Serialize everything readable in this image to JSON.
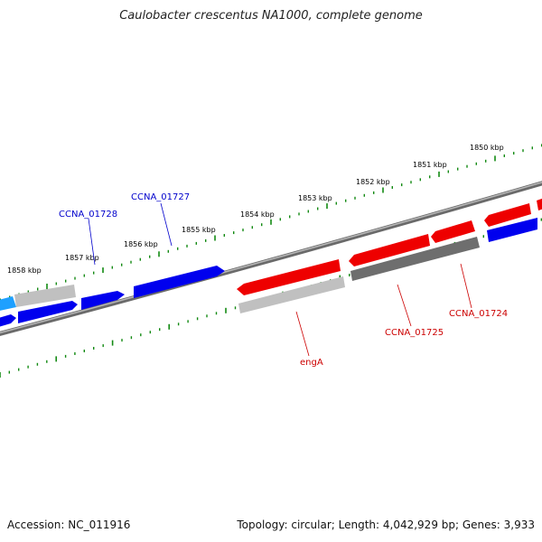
{
  "title": "Caulobacter crescentus NA1000, complete genome",
  "footer": {
    "accession": "Accession: NC_011916",
    "summary": "Topology: circular; Length: 4,042,929 bp; Genes: 3,933"
  },
  "colors": {
    "forward_cds": "#ee0000",
    "reverse_cds": "#0000ee",
    "forward_rna": "#6e6e6e",
    "reverse_rna": "#c0c0c0",
    "highlight": "#1ea0ff",
    "backbone": "#888888",
    "tick": "#138a13"
  },
  "scale_labels": [
    "1850 kbp",
    "1851 kbp",
    "1852 kbp",
    "1853 kbp",
    "1854 kbp",
    "1855 kbp",
    "1856 kbp",
    "1857 kbp",
    "1858 kbp"
  ],
  "gene_labels": [
    {
      "text": "CCNA_01728",
      "color": "#0000cc"
    },
    {
      "text": "CCNA_01727",
      "color": "#0000cc"
    },
    {
      "text": "engA",
      "color": "#cc0000"
    },
    {
      "text": "CCNA_01725",
      "color": "#cc0000"
    },
    {
      "text": "CCNA_01724",
      "color": "#cc0000"
    }
  ]
}
